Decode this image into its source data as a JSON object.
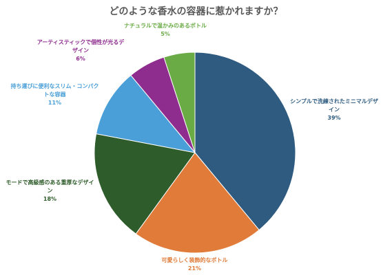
{
  "chart_data": {
    "type": "pie",
    "title": "どのような香水の容器に惹かれますか？",
    "slices": [
      {
        "label": "シンプルで洗練されたミニマルデザイン",
        "value": 39,
        "value_label": "39%",
        "color": "#2e5b7f"
      },
      {
        "label": "可愛らしく装飾的なボトル",
        "value": 21,
        "value_label": "21%",
        "color": "#e07b39"
      },
      {
        "label": "モードで高級感のある重厚なデザイン",
        "value": 18,
        "value_label": "18%",
        "color": "#2e5c2a"
      },
      {
        "label": "持ち運びに便利なスリム・コンパクトな容器",
        "value": 11,
        "value_label": "11%",
        "color": "#4a9fd8"
      },
      {
        "label": "アーティスティックで個性が光るデザイン",
        "value": 6,
        "value_label": "6%",
        "color": "#8e2d8e"
      },
      {
        "label": "ナチュラルで温かみのあるボトル",
        "value": 5,
        "value_label": "5%",
        "color": "#6aab45"
      }
    ],
    "label_colors": [
      "#2e5b7f",
      "#e07b39",
      "#2e5c2a",
      "#4a9fd8",
      "#8e2d8e",
      "#6aab45"
    ],
    "start_angle_deg": 0,
    "direction": "clockwise",
    "legend": "none"
  }
}
